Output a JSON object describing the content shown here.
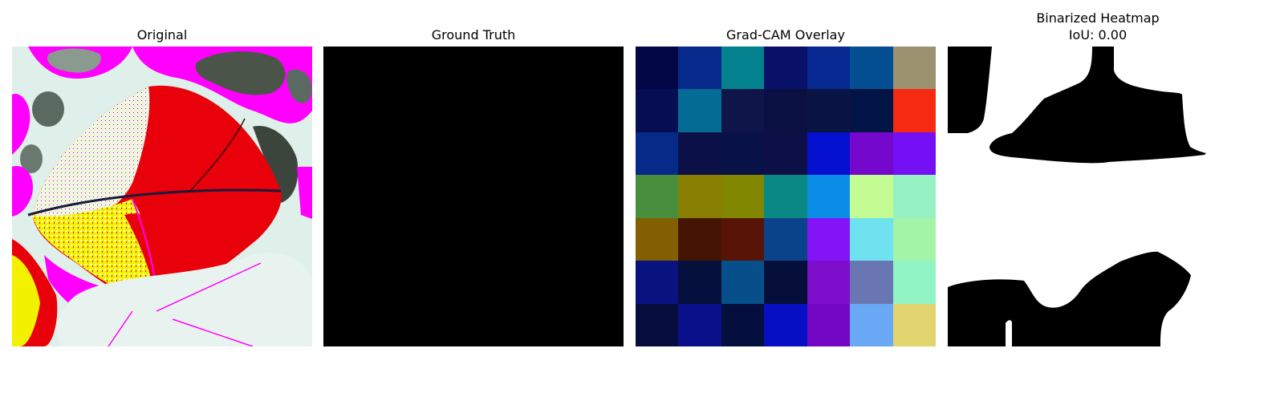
{
  "panels": {
    "original": {
      "title": "Original"
    },
    "ground_truth": {
      "title": "Ground Truth",
      "fill": "#000000"
    },
    "gradcam": {
      "title": "Grad-CAM Overlay",
      "grid_size": 7,
      "cells": [
        [
          "#030645",
          "#062a8c",
          "#04818e",
          "#091068",
          "#072891",
          "#034f92",
          "#9d9270"
        ],
        [
          "#070d52",
          "#046b95",
          "#0f1548",
          "#0b1043",
          "#0a1443",
          "#021445",
          "#f52a10"
        ],
        [
          "#052a88",
          "#0b1147",
          "#091246",
          "#0c1047",
          "#0410cf",
          "#7408cd",
          "#7510f5"
        ],
        [
          "#478f3d",
          "#887f02",
          "#828702",
          "#0a8883",
          "#0b8ce7",
          "#c4fc94",
          "#96f2c3"
        ],
        [
          "#835f02",
          "#441502",
          "#561306",
          "#0a4389",
          "#8314f7",
          "#6ee3ef",
          "#a4f4a8"
        ],
        [
          "#081380",
          "#06103d",
          "#074f8a",
          "#050f3a",
          "#7d0ecc",
          "#6a75b4",
          "#90f4c4"
        ],
        [
          "#050e3c",
          "#09108a",
          "#050f3d",
          "#060fc1",
          "#7407c3",
          "#68a8f4",
          "#e2d570"
        ]
      ]
    },
    "binarized": {
      "title_line1": "Binarized Heatmap",
      "title_line2": "IoU: 0.00"
    }
  },
  "colors": {
    "background": "#ffffff",
    "mask": "#000000",
    "leaf_red": "#e8000a",
    "leaf_yellow": "#f2f200",
    "magenta": "#ff00ff",
    "pale_bg": "#dff0ea"
  }
}
